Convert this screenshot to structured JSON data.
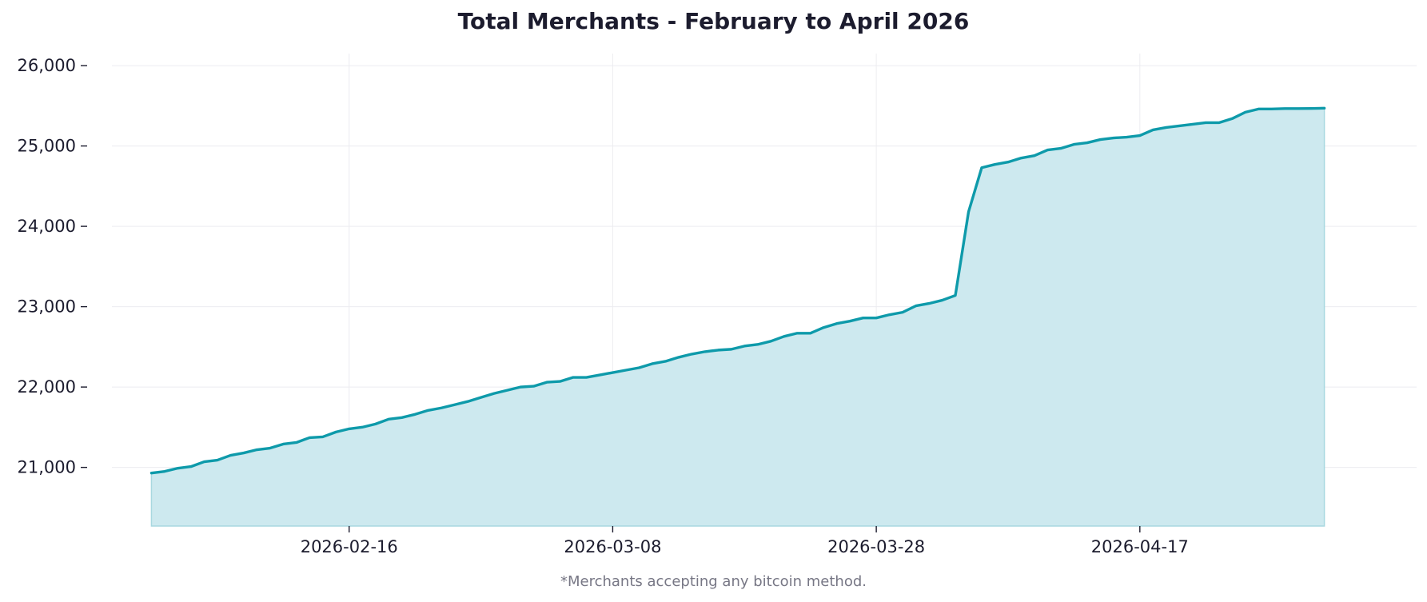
{
  "title": "Total Merchants - February to April 2026",
  "footnote": "*Merchants accepting any bitcoin method.",
  "chart_data": {
    "type": "area",
    "title": "Total Merchants - February to April 2026",
    "xlabel": "",
    "ylabel": "",
    "x_start": "2026-01-29",
    "x_end": "2026-05-08",
    "x_ticks": [
      "2026-02-16",
      "2026-03-08",
      "2026-03-28",
      "2026-04-17"
    ],
    "ylim": [
      20270,
      26150
    ],
    "y_ticks": [
      21000,
      22000,
      23000,
      24000,
      25000,
      26000
    ],
    "y_tick_labels": [
      "21,000",
      "22,000",
      "23,000",
      "24,000",
      "25,000",
      "26,000"
    ],
    "grid": true,
    "line_color": "#0e9aaa",
    "fill_color": "#cde9ef",
    "series": [
      {
        "dates": [
          "2026-02-01",
          "2026-02-02",
          "2026-02-03",
          "2026-02-04",
          "2026-02-05",
          "2026-02-06",
          "2026-02-07",
          "2026-02-08",
          "2026-02-09",
          "2026-02-10",
          "2026-02-11",
          "2026-02-12",
          "2026-02-13",
          "2026-02-14",
          "2026-02-15",
          "2026-02-16",
          "2026-02-17",
          "2026-02-18",
          "2026-02-19",
          "2026-02-20",
          "2026-02-21",
          "2026-02-22",
          "2026-02-23",
          "2026-02-24",
          "2026-02-25",
          "2026-02-26",
          "2026-02-27",
          "2026-02-28",
          "2026-03-01",
          "2026-03-02",
          "2026-03-03",
          "2026-03-04",
          "2026-03-05",
          "2026-03-06",
          "2026-03-07",
          "2026-03-08",
          "2026-03-09",
          "2026-03-10",
          "2026-03-11",
          "2026-03-12",
          "2026-03-13",
          "2026-03-14",
          "2026-03-15",
          "2026-03-16",
          "2026-03-17",
          "2026-03-18",
          "2026-03-19",
          "2026-03-20",
          "2026-03-21",
          "2026-03-22",
          "2026-03-23",
          "2026-03-24",
          "2026-03-25",
          "2026-03-26",
          "2026-03-27",
          "2026-03-28",
          "2026-03-29",
          "2026-03-30",
          "2026-03-31",
          "2026-04-01",
          "2026-04-02",
          "2026-04-03",
          "2026-04-04",
          "2026-04-05",
          "2026-04-06",
          "2026-04-07",
          "2026-04-08",
          "2026-04-09",
          "2026-04-10",
          "2026-04-11",
          "2026-04-12",
          "2026-04-13",
          "2026-04-14",
          "2026-04-15",
          "2026-04-16",
          "2026-04-17",
          "2026-04-18",
          "2026-04-19",
          "2026-04-20",
          "2026-04-21",
          "2026-04-22",
          "2026-04-23",
          "2026-04-24",
          "2026-04-25",
          "2026-04-26",
          "2026-04-27",
          "2026-04-28",
          "2026-04-29",
          "2026-04-30",
          "2026-05-01"
        ],
        "values": [
          20930,
          20950,
          20990,
          21010,
          21070,
          21090,
          21150,
          21180,
          21220,
          21240,
          21290,
          21310,
          21370,
          21380,
          21440,
          21480,
          21500,
          21540,
          21600,
          21620,
          21660,
          21710,
          21740,
          21780,
          21820,
          21870,
          21920,
          21960,
          22000,
          22010,
          22060,
          22070,
          22120,
          22120,
          22150,
          22180,
          22210,
          22240,
          22290,
          22320,
          22370,
          22410,
          22440,
          22460,
          22470,
          22510,
          22530,
          22570,
          22630,
          22670,
          22670,
          22740,
          22790,
          22820,
          22860,
          22860,
          22900,
          22930,
          23010,
          23040,
          23080,
          23140,
          24180,
          24730,
          24770,
          24800,
          24850,
          24880,
          24950,
          24970,
          25020,
          25040,
          25080,
          25100,
          25110,
          25130,
          25200,
          25230,
          25250,
          25270,
          25290,
          25290,
          25340,
          25420,
          25460,
          25460,
          25465,
          25465,
          25467,
          25470
        ]
      }
    ]
  }
}
